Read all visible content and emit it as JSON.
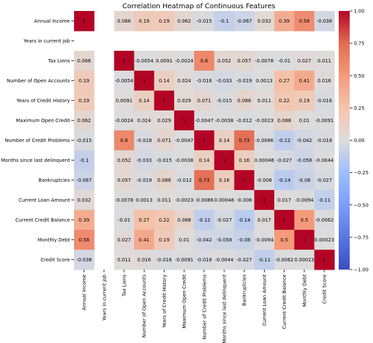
{
  "chart_data": {
    "type": "heatmap",
    "title": "Correlation Heatmap of Continuous Features",
    "xlabel": "",
    "ylabel": "",
    "variables": [
      "Annual Income",
      "Years in current job",
      "Tax Liens",
      "Number of Open Accounts",
      "Years of Credit History",
      "Maximum Open Credit",
      "Number of Credit Problems",
      "Months since last delinquent",
      "Bankruptcies",
      "Current Loan Amount",
      "Current Credit Balance",
      "Monthly Debt",
      "Credit Score"
    ],
    "matrix": [
      [
        "1",
        "",
        "0.066",
        "0.19",
        "0.19",
        "0.062",
        "-0.015",
        "-0.1",
        "-0.067",
        "0.032",
        "0.39",
        "0.58",
        "-0.038"
      ],
      [
        "",
        "",
        "",
        "",
        "",
        "",
        "",
        "",
        "",
        "",
        "",
        "",
        ""
      ],
      [
        "0.066",
        "",
        "1",
        "-0.0054",
        "0.0091",
        "-0.0024",
        "0.6",
        "0.052",
        "0.057",
        "-0.0078",
        "-0.01",
        "0.027",
        "0.011"
      ],
      [
        "0.19",
        "",
        "-0.0054",
        "1",
        "0.14",
        "0.024",
        "-0.018",
        "-0.033",
        "-0.019",
        "0.0013",
        "0.27",
        "0.41",
        "0.016"
      ],
      [
        "0.19",
        "",
        "0.0091",
        "0.14",
        "1",
        "0.029",
        "0.071",
        "-0.015",
        "0.086",
        "0.011",
        "0.22",
        "0.19",
        "-0.016"
      ],
      [
        "0.062",
        "",
        "-0.0024",
        "0.024",
        "0.029",
        "1",
        "-0.0047",
        "-0.0038",
        "-0.012",
        "-0.0023",
        "0.088",
        "0.01",
        "-0.0091"
      ],
      [
        "-0.015",
        "",
        "0.6",
        "-0.018",
        "0.071",
        "-0.0047",
        "1",
        "0.14",
        "0.73",
        "-0.0086",
        "-0.12",
        "-0.042",
        "-0.018"
      ],
      [
        "-0.1",
        "",
        "0.052",
        "-0.033",
        "-0.015",
        "-0.0038",
        "0.14",
        "1",
        "0.16",
        "0.00046",
        "-0.027",
        "-0.058",
        "-0.0044"
      ],
      [
        "-0.067",
        "",
        "0.057",
        "-0.019",
        "0.086",
        "-0.012",
        "0.73",
        "0.16",
        "1",
        "-0.006",
        "-0.14",
        "-0.08",
        "-0.027"
      ],
      [
        "0.032",
        "",
        "-0.0078",
        "0.0013",
        "0.011",
        "-0.0023",
        "-0.0086",
        "0.00046",
        "-0.006",
        "1",
        "0.017",
        "-0.0094",
        "-0.11"
      ],
      [
        "0.39",
        "",
        "-0.01",
        "0.27",
        "0.22",
        "0.088",
        "-0.12",
        "-0.027",
        "-0.14",
        "0.017",
        "1",
        "0.5",
        "-0.0062"
      ],
      [
        "0.58",
        "",
        "0.027",
        "0.41",
        "0.19",
        "0.01",
        "-0.042",
        "-0.058",
        "-0.08",
        "-0.0094",
        "0.5",
        "1",
        "0.00023"
      ],
      [
        "-0.038",
        "",
        "0.011",
        "0.016",
        "-0.016",
        "-0.0091",
        "-0.018",
        "-0.0044",
        "-0.027",
        "-0.11",
        "-0.0062",
        "0.00023",
        "1"
      ]
    ],
    "colorbar": {
      "range": [
        -1,
        1
      ],
      "ticks": [
        "1.00",
        "0.75",
        "0.50",
        "0.25",
        "0.00",
        "−0.25",
        "−0.50",
        "−0.75",
        "−1.00"
      ],
      "colormap": "coolwarm",
      "colors": [
        "#3b4cc0",
        "#dddddd",
        "#b40426"
      ]
    },
    "annotated": true,
    "grid": false
  }
}
